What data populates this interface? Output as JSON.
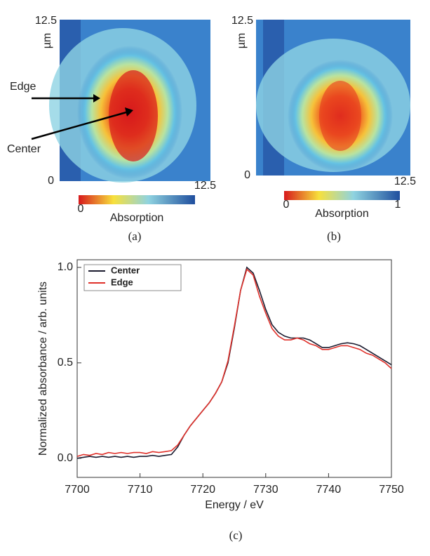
{
  "panels": [
    {
      "caption": "(a)",
      "ylabel": "µm",
      "ytop": "12.5",
      "ybottom": "0",
      "xmax": "12.5",
      "colorbar_label": "Absorption",
      "colorbar_ticks": [
        "0"
      ],
      "annotations": [
        "Edge",
        "Center"
      ]
    },
    {
      "caption": "(b)",
      "ylabel": "µm",
      "ytop": "12.5",
      "ybottom": "0",
      "xmax": "12.5",
      "colorbar_label": "Absorption",
      "colorbar_ticks": [
        "0",
        "1"
      ]
    }
  ],
  "chart_data": {
    "type": "line",
    "caption": "(c)",
    "xlabel": "Energy / eV",
    "ylabel": "Normalized absorbance / arb. units",
    "x": [
      7700,
      7701,
      7702,
      7703,
      7704,
      7705,
      7706,
      7707,
      7708,
      7709,
      7710,
      7711,
      7712,
      7713,
      7714,
      7715,
      7716,
      7717,
      7718,
      7719,
      7720,
      7721,
      7722,
      7723,
      7724,
      7725,
      7726,
      7727,
      7728,
      7729,
      7730,
      7731,
      7732,
      7733,
      7734,
      7735,
      7736,
      7737,
      7738,
      7739,
      7740,
      7741,
      7742,
      7743,
      7744,
      7745,
      7746,
      7747,
      7748,
      7749,
      7750
    ],
    "series": [
      {
        "name": "Center",
        "color": "#1a1a2e",
        "values": [
          0.0,
          0.005,
          0.01,
          0.005,
          0.01,
          0.005,
          0.01,
          0.005,
          0.01,
          0.005,
          0.01,
          0.01,
          0.015,
          0.01,
          0.015,
          0.02,
          0.06,
          0.12,
          0.17,
          0.21,
          0.25,
          0.29,
          0.34,
          0.4,
          0.5,
          0.68,
          0.88,
          1.0,
          0.97,
          0.88,
          0.78,
          0.7,
          0.66,
          0.64,
          0.63,
          0.63,
          0.63,
          0.62,
          0.6,
          0.58,
          0.58,
          0.59,
          0.6,
          0.605,
          0.6,
          0.59,
          0.57,
          0.55,
          0.53,
          0.51,
          0.49
        ]
      },
      {
        "name": "Edge",
        "color": "#e0302a",
        "values": [
          0.01,
          0.02,
          0.015,
          0.025,
          0.02,
          0.03,
          0.025,
          0.03,
          0.025,
          0.03,
          0.03,
          0.025,
          0.035,
          0.03,
          0.035,
          0.04,
          0.07,
          0.12,
          0.17,
          0.21,
          0.25,
          0.29,
          0.34,
          0.4,
          0.51,
          0.69,
          0.88,
          0.99,
          0.96,
          0.85,
          0.76,
          0.68,
          0.64,
          0.62,
          0.62,
          0.63,
          0.62,
          0.6,
          0.59,
          0.57,
          0.57,
          0.58,
          0.59,
          0.59,
          0.58,
          0.57,
          0.55,
          0.54,
          0.52,
          0.5,
          0.47
        ]
      }
    ],
    "xlim": [
      7700,
      7750
    ],
    "xticks": [
      7700,
      7710,
      7720,
      7730,
      7740,
      7750
    ],
    "ylim": [
      -0.1,
      1.04
    ],
    "yticks": [
      {
        "value": 0,
        "label": "0.0"
      },
      {
        "value": 0.5,
        "label": "0.5"
      },
      {
        "value": 1,
        "label": "1.0"
      }
    ],
    "legend": "upper left"
  }
}
